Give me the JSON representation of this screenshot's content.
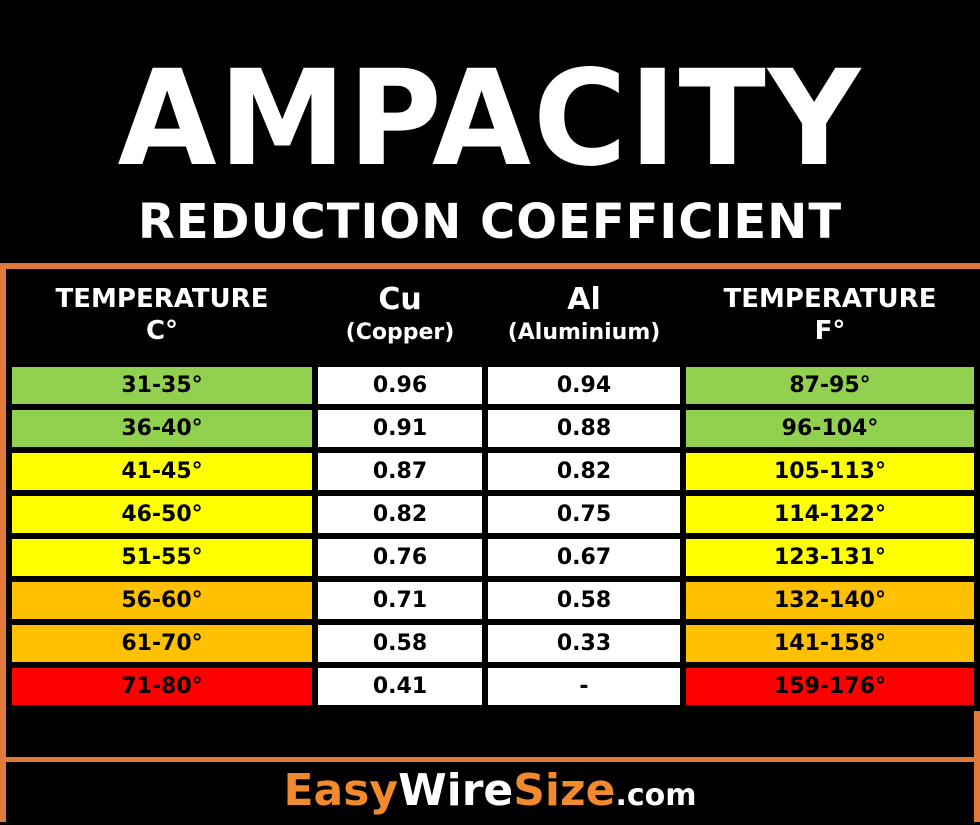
{
  "header": {
    "title": "AMPACITY",
    "subtitle": "REDUCTION COEFFICIENT"
  },
  "table": {
    "columns": [
      {
        "line1": "TEMPERATURE",
        "line2": "C°"
      },
      {
        "line1": "Cu",
        "line2": "(Copper)"
      },
      {
        "line1": "Al",
        "line2": "(Aluminium)"
      },
      {
        "line1": "TEMPERATURE",
        "line2": "F°"
      }
    ],
    "rows": [
      {
        "c": "31-35°",
        "cu": "0.96",
        "al": "0.94",
        "f": "87-95°",
        "color": "#92d050"
      },
      {
        "c": "36-40°",
        "cu": "0.91",
        "al": "0.88",
        "f": "96-104°",
        "color": "#92d050"
      },
      {
        "c": "41-45°",
        "cu": "0.87",
        "al": "0.82",
        "f": "105-113°",
        "color": "#ffff00"
      },
      {
        "c": "46-50°",
        "cu": "0.82",
        "al": "0.75",
        "f": "114-122°",
        "color": "#ffff00"
      },
      {
        "c": "51-55°",
        "cu": "0.76",
        "al": "0.67",
        "f": "123-131°",
        "color": "#ffff00"
      },
      {
        "c": "56-60°",
        "cu": "0.71",
        "al": "0.58",
        "f": "132-140°",
        "color": "#ffc000"
      },
      {
        "c": "61-70°",
        "cu": "0.58",
        "al": "0.33",
        "f": "141-158°",
        "color": "#ffc000"
      },
      {
        "c": "71-80°",
        "cu": "0.41",
        "al": "-",
        "f": "159-176°",
        "color": "#ff0000"
      }
    ],
    "value_cell_color": "#ffffff",
    "border_color": "#e0793a"
  },
  "footer": {
    "logo_easy": "Easy",
    "logo_wire": "Wire",
    "logo_size": "Size",
    "logo_com": ".com"
  }
}
